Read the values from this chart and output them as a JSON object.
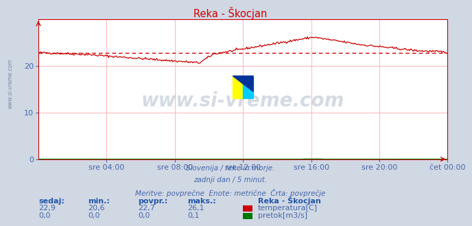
{
  "title": "Reka - Škocjan",
  "title_color": "#cc0000",
  "bg_color": "#d0d8e4",
  "plot_bg_color": "#ffffff",
  "grid_color": "#ffaaaa",
  "xlabel_color": "#4466aa",
  "text_color": "#4466aa",
  "watermark": "www.si-vreme.com",
  "watermark_color": "#1a3a6a",
  "watermark_alpha": 0.18,
  "subtitle_lines": [
    "Slovenija / reke in morje.",
    "zadnji dan / 5 minut.",
    "Meritve: povprečne  Enote: metrične  Črta: povprečje"
  ],
  "x_tick_labels": [
    "sre 04:00",
    "sre 08:00",
    "sre 12:00",
    "sre 16:00",
    "sre 20:00",
    "čet 00:00"
  ],
  "x_tick_positions": [
    72,
    144,
    216,
    288,
    360,
    432
  ],
  "total_points": 432,
  "ylim": [
    0,
    30
  ],
  "yticks": [
    0,
    10,
    20
  ],
  "avg_line_value": 22.7,
  "avg_line_color": "#cc0000",
  "temp_line_color": "#cc0000",
  "flow_line_color": "#007700",
  "table_headers": [
    "sedaj:",
    "min.:",
    "povpr.:",
    "maks.:"
  ],
  "table_temp_values": [
    "22,9",
    "20,6",
    "22,7",
    "26,1"
  ],
  "table_flow_values": [
    "0,0",
    "0,0",
    "0,0",
    "0,1"
  ],
  "legend_station": "Reka - Škocjan",
  "legend_temp_label": "temperatura[C]",
  "legend_flow_label": "pretok[m3/s]",
  "legend_temp_color": "#cc0000",
  "legend_flow_color": "#007700",
  "left_label": "www.si-vreme.com"
}
